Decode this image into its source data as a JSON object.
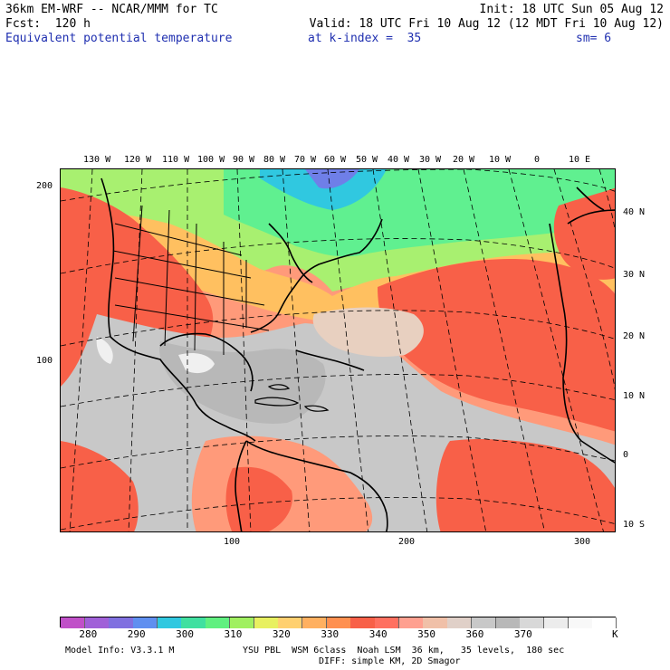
{
  "header": {
    "line1_left": "36km EM-WRF -- NCAR/MMM for TC",
    "line1_right": "Init: 18 UTC Sun 05 Aug 12",
    "line2_left": "Fcst:  120 h",
    "line2_right": "Valid: 18 UTC Fri 10 Aug 12 (12 MDT Fri 10 Aug 12)",
    "field_name": "Equivalent potential temperature",
    "level": "at k-index =  35",
    "smoothing": "sm= 6"
  },
  "map": {
    "top_lon_labels": [
      "130 W",
      "120 W",
      "110 W",
      "100 W",
      "90 W",
      "80 W",
      "70 W",
      "60 W",
      "50 W",
      "40 W",
      "30 W",
      "20 W",
      "10 W",
      "0",
      "10 E"
    ],
    "right_lat_labels": [
      "40 N",
      "30 N",
      "20 N",
      "10 N",
      "0",
      "10 S"
    ],
    "left_grid_labels": [
      "200",
      "100"
    ],
    "bottom_grid_labels": [
      "100",
      "200",
      "300"
    ]
  },
  "colorbar": {
    "colors": [
      "#c050c8",
      "#a060d8",
      "#8070e0",
      "#5f8ff0",
      "#30c8e0",
      "#40e0a0",
      "#60f080",
      "#a0f060",
      "#e8f060",
      "#ffd070",
      "#ffb060",
      "#ff9050",
      "#f86048",
      "#ff7060",
      "#ffa090",
      "#f0c0a8",
      "#e0d0c8",
      "#c8c8c8",
      "#b8b8b8",
      "#d8d8d8",
      "#ececec",
      "#f8f8f8",
      "#ffffff"
    ],
    "tick_labels": [
      "280",
      "290",
      "300",
      "310",
      "320",
      "330",
      "340",
      "350",
      "360",
      "370"
    ],
    "units": "K"
  },
  "footer": {
    "model_info": "Model Info: V3.3.1 M",
    "physics": "YSU PBL  WSM 6class  Noah LSM  36 km,   35 levels,  180 sec",
    "diffusion": "DIFF: simple KM, 2D Smagor"
  }
}
